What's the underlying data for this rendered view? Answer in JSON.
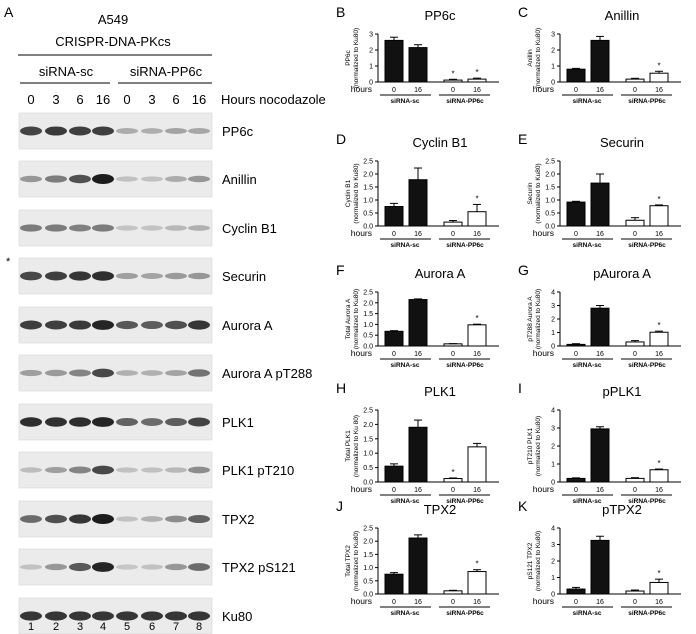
{
  "figure": {
    "panel_letter": "A",
    "cell_line": "A549",
    "model": "CRISPR-DNA-PKcs",
    "groups": [
      "siRNA-sc",
      "siRNA-PP6c"
    ],
    "timepoints": [
      "0",
      "3",
      "6",
      "16",
      "0",
      "3",
      "6",
      "16"
    ],
    "timepoint_label": "Hours nocodazole",
    "lane_numbers": [
      "1",
      "2",
      "3",
      "4",
      "5",
      "6",
      "7",
      "8"
    ],
    "asterisk": "*",
    "blots": [
      {
        "label": "PP6c",
        "lanes": [
          0.78,
          0.82,
          0.8,
          0.8,
          0.18,
          0.16,
          0.22,
          0.2
        ]
      },
      {
        "label": "Anillin",
        "lanes": [
          0.3,
          0.45,
          0.7,
          1.0,
          0.05,
          0.05,
          0.18,
          0.3
        ]
      },
      {
        "label": "Cyclin B1",
        "lanes": [
          0.45,
          0.45,
          0.42,
          0.45,
          0.04,
          0.04,
          0.1,
          0.15
        ]
      },
      {
        "label": "Securin",
        "lanes": [
          0.75,
          0.8,
          0.85,
          0.9,
          0.25,
          0.22,
          0.28,
          0.3
        ]
      },
      {
        "label": "Aurora A",
        "lanes": [
          0.8,
          0.8,
          0.82,
          0.95,
          0.65,
          0.62,
          0.7,
          0.85
        ]
      },
      {
        "label": "Aurora A pT288",
        "lanes": [
          0.25,
          0.28,
          0.4,
          0.75,
          0.15,
          0.15,
          0.22,
          0.5
        ]
      },
      {
        "label": "PLK1",
        "lanes": [
          0.9,
          0.88,
          0.9,
          0.95,
          0.6,
          0.55,
          0.62,
          0.78
        ]
      },
      {
        "label": "PLK1 pT210",
        "lanes": [
          0.08,
          0.25,
          0.4,
          0.75,
          0.05,
          0.05,
          0.1,
          0.35
        ]
      },
      {
        "label": "TPX2",
        "lanes": [
          0.55,
          0.7,
          0.85,
          1.0,
          0.05,
          0.15,
          0.35,
          0.6
        ]
      },
      {
        "label": "TPX2 pS121",
        "lanes": [
          0.05,
          0.3,
          0.65,
          0.95,
          0.03,
          0.05,
          0.3,
          0.55
        ]
      },
      {
        "label": "Ku80",
        "lanes": [
          0.85,
          0.85,
          0.85,
          0.85,
          0.85,
          0.85,
          0.85,
          0.85
        ]
      }
    ]
  },
  "chart_common": {
    "hours_label": "hours",
    "x_ticks": [
      "0",
      "16",
      "0",
      "16"
    ],
    "group_labels": [
      "siRNA-sc",
      "siRNA-PP6c"
    ],
    "colors": {
      "filled": "#111111",
      "open": "#ffffff",
      "axis": "#000000"
    }
  },
  "chart_data": [
    {
      "panel": "B",
      "type": "bar",
      "title": "PP6c",
      "ylabel": [
        "PP6c",
        "(normalized to Ku80)"
      ],
      "ylim": [
        0,
        3
      ],
      "yticks": [
        "0",
        "1",
        "2",
        "3"
      ],
      "values": [
        2.6,
        2.15,
        0.12,
        0.18
      ],
      "errors": [
        0.2,
        0.18,
        0.05,
        0.06
      ],
      "stars": [
        false,
        false,
        true,
        true
      ]
    },
    {
      "panel": "C",
      "type": "bar",
      "title": "Anillin",
      "ylabel": [
        "Anillin",
        "(normalized to Ku80)"
      ],
      "ylim": [
        0,
        3
      ],
      "yticks": [
        "0",
        "1",
        "2",
        "3"
      ],
      "values": [
        0.8,
        2.6,
        0.18,
        0.55
      ],
      "errors": [
        0.05,
        0.25,
        0.05,
        0.12
      ],
      "stars": [
        false,
        false,
        false,
        true
      ]
    },
    {
      "panel": "D",
      "type": "bar",
      "title": "Cyclin B1",
      "ylabel": [
        "Cyclin B1",
        "(normalized to Ku80)"
      ],
      "ylim": [
        0,
        2.5
      ],
      "yticks": [
        "0.0",
        "0.5",
        "1.0",
        "1.5",
        "2.0",
        "2.5"
      ],
      "values": [
        0.75,
        1.78,
        0.15,
        0.55
      ],
      "errors": [
        0.12,
        0.45,
        0.06,
        0.28
      ],
      "stars": [
        false,
        false,
        false,
        true
      ]
    },
    {
      "panel": "E",
      "type": "bar",
      "title": "Securin",
      "ylabel": [
        "Securin",
        "(normalized to Ku80)"
      ],
      "ylim": [
        0,
        2.5
      ],
      "yticks": [
        "0.0",
        "0.5",
        "1.0",
        "1.5",
        "2.0",
        "2.5"
      ],
      "values": [
        0.92,
        1.65,
        0.22,
        0.78
      ],
      "errors": [
        0.03,
        0.35,
        0.1,
        0.03
      ],
      "stars": [
        false,
        false,
        false,
        true
      ]
    },
    {
      "panel": "F",
      "type": "bar",
      "title": "Aurora A",
      "ylabel": [
        "Total Aurora A",
        "(normalized to Ku80)"
      ],
      "ylim": [
        0,
        2.5
      ],
      "yticks": [
        "0.0",
        "0.5",
        "1.0",
        "1.5",
        "2.0",
        "2.5"
      ],
      "values": [
        0.68,
        2.15,
        0.1,
        0.98
      ],
      "errors": [
        0.03,
        0.03,
        0.01,
        0.03
      ],
      "stars": [
        false,
        false,
        false,
        true
      ]
    },
    {
      "panel": "G",
      "type": "bar",
      "title": "pAurora A",
      "ylabel": [
        "pT288 Aurora A",
        "(normalized to Ku80)"
      ],
      "ylim": [
        0,
        4
      ],
      "yticks": [
        "0",
        "1",
        "2",
        "3",
        "4"
      ],
      "values": [
        0.12,
        2.8,
        0.3,
        1.02
      ],
      "errors": [
        0.05,
        0.2,
        0.1,
        0.08
      ],
      "stars": [
        false,
        false,
        false,
        true
      ]
    },
    {
      "panel": "H",
      "type": "bar",
      "title": "PLK1",
      "ylabel": [
        "Total PLK1",
        "(normalized to Ku 80)"
      ],
      "ylim": [
        0,
        2.5
      ],
      "yticks": [
        "0.0",
        "0.5",
        "1.0",
        "1.5",
        "2.0",
        "2.5"
      ],
      "values": [
        0.55,
        1.9,
        0.12,
        1.22
      ],
      "errors": [
        0.08,
        0.25,
        0.02,
        0.12
      ],
      "stars": [
        false,
        false,
        true,
        false
      ]
    },
    {
      "panel": "I",
      "type": "bar",
      "title": "pPLK1",
      "ylabel": [
        "pT210 PLK1",
        "(normalized to Ku80)"
      ],
      "ylim": [
        0,
        4
      ],
      "yticks": [
        "0",
        "1",
        "2",
        "3",
        "4"
      ],
      "values": [
        0.2,
        2.95,
        0.2,
        0.68
      ],
      "errors": [
        0.03,
        0.12,
        0.04,
        0.04
      ],
      "stars": [
        false,
        false,
        false,
        true
      ]
    },
    {
      "panel": "J",
      "type": "bar",
      "title": "TPX2",
      "ylabel": [
        "Total TPX2",
        "(normalized to Ku80)"
      ],
      "ylim": [
        0,
        2.5
      ],
      "yticks": [
        "0.0",
        "0.5",
        "1.0",
        "1.5",
        "2.0",
        "2.5"
      ],
      "values": [
        0.75,
        2.12,
        0.12,
        0.85
      ],
      "errors": [
        0.06,
        0.12,
        0.02,
        0.07
      ],
      "stars": [
        false,
        false,
        false,
        true
      ]
    },
    {
      "panel": "K",
      "type": "bar",
      "title": "pTPX2",
      "ylabel": [
        "pS121 TPX2",
        "(normalized to Ku80)"
      ],
      "ylim": [
        0,
        4
      ],
      "yticks": [
        "0",
        "1",
        "2",
        "3",
        "4"
      ],
      "values": [
        0.3,
        3.25,
        0.18,
        0.7
      ],
      "errors": [
        0.1,
        0.25,
        0.06,
        0.2
      ],
      "stars": [
        false,
        false,
        false,
        true
      ]
    }
  ]
}
